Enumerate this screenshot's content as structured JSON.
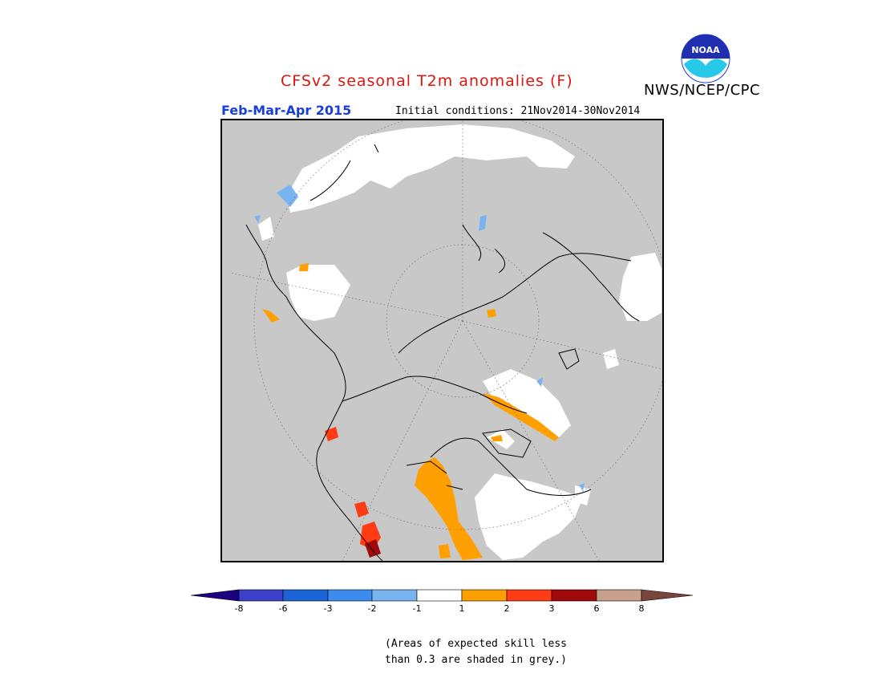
{
  "header": {
    "title": "CFSv2 seasonal T2m anomalies (F)",
    "org": "NWS/NCEP/CPC",
    "logo_text": "NOAA",
    "period": "Feb-Mar-Apr 2015",
    "initial_conditions": "Initial conditions: 21Nov2014-30Nov2014"
  },
  "legend": {
    "ticks": [
      "-8",
      "-6",
      "-3",
      "-2",
      "-1",
      "1",
      "2",
      "3",
      "6",
      "8"
    ],
    "colors": [
      "#1b0080",
      "#3d40c8",
      "#1a64d8",
      "#3c8cf0",
      "#78b4f0",
      "#ffffff",
      "#ffa000",
      "#ff3c14",
      "#a00a0a",
      "#c8a08c",
      "#78463c"
    ],
    "note_line1": "(Areas of expected skill less",
    "note_line2": "than 0.3 are shaded in grey.)"
  },
  "map": {
    "projection": "north polar stereographic",
    "background_color": "#c8c8c8"
  }
}
